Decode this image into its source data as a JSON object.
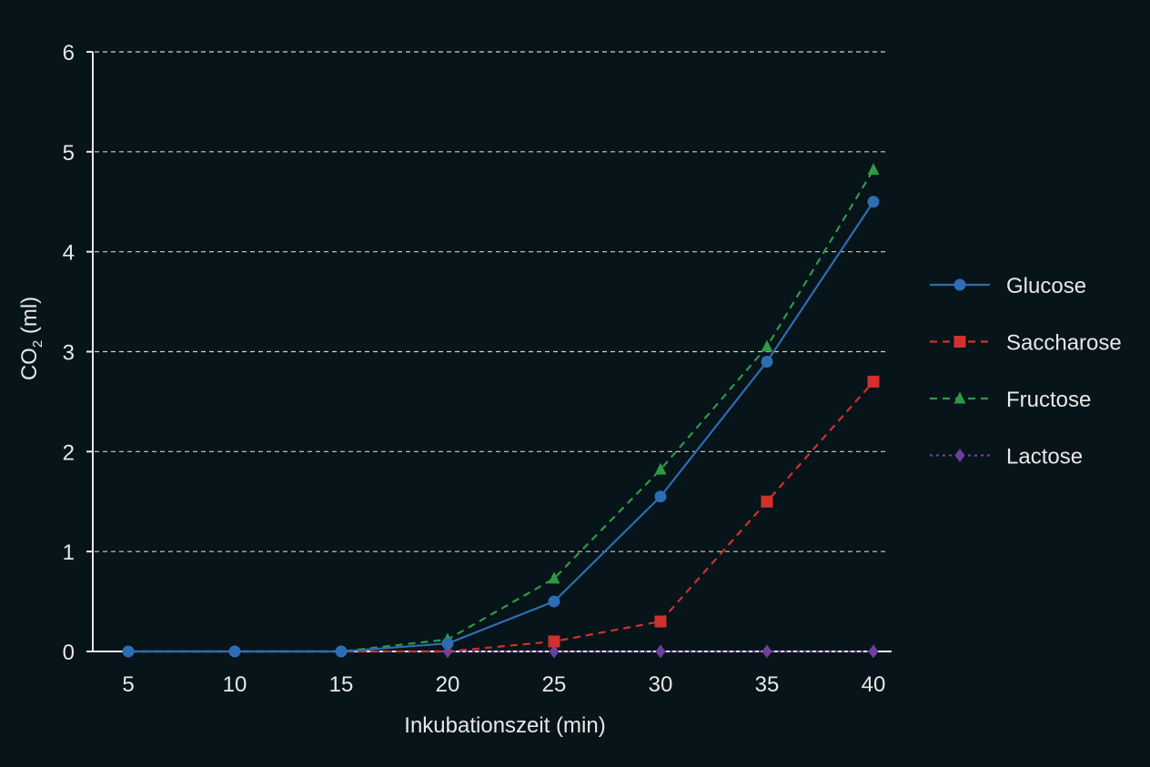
{
  "chart_data": {
    "type": "line",
    "title": "",
    "xlabel": "Inkubationszeit (min)",
    "ylabel": "CO2 (ml)",
    "ylabel_main": "CO",
    "ylabel_sub": "2",
    "ylabel_unit": " (ml)",
    "x": [
      5,
      10,
      15,
      20,
      25,
      30,
      35,
      40
    ],
    "x_tick_labels": [
      "5",
      "10",
      "15",
      "20",
      "25",
      "30",
      "35",
      "40"
    ],
    "ylim": [
      0,
      6
    ],
    "y_ticks": [
      0,
      1,
      2,
      3,
      4,
      5,
      6
    ],
    "y_tick_labels": [
      "0",
      "1",
      "2",
      "3",
      "4",
      "5",
      "6"
    ],
    "grid": "horizontal-dashed",
    "legend_position": "right",
    "series": [
      {
        "name": "Glucose",
        "color": "#2e6db4",
        "line": "solid",
        "marker": "circle",
        "values": [
          0,
          0,
          0,
          0.08,
          0.5,
          1.55,
          2.9,
          4.5
        ]
      },
      {
        "name": "Saccharose",
        "color": "#d0312d",
        "line": "dashed",
        "marker": "square",
        "values": [
          0,
          0,
          0,
          0,
          0.1,
          0.3,
          1.5,
          2.7
        ]
      },
      {
        "name": "Fructose",
        "color": "#2e9a45",
        "line": "dashed",
        "marker": "triangle",
        "values": [
          0,
          0,
          0,
          0.12,
          0.73,
          1.82,
          3.05,
          4.82
        ]
      },
      {
        "name": "Lactose",
        "color": "#6b3fa0",
        "line": "dotted",
        "marker": "diamond",
        "values": [
          0,
          0,
          0,
          0,
          0,
          0,
          0,
          0
        ]
      }
    ]
  },
  "colors": {
    "background": "#071419",
    "axis": "#e8e8e8",
    "grid": "#cfcfcf"
  }
}
